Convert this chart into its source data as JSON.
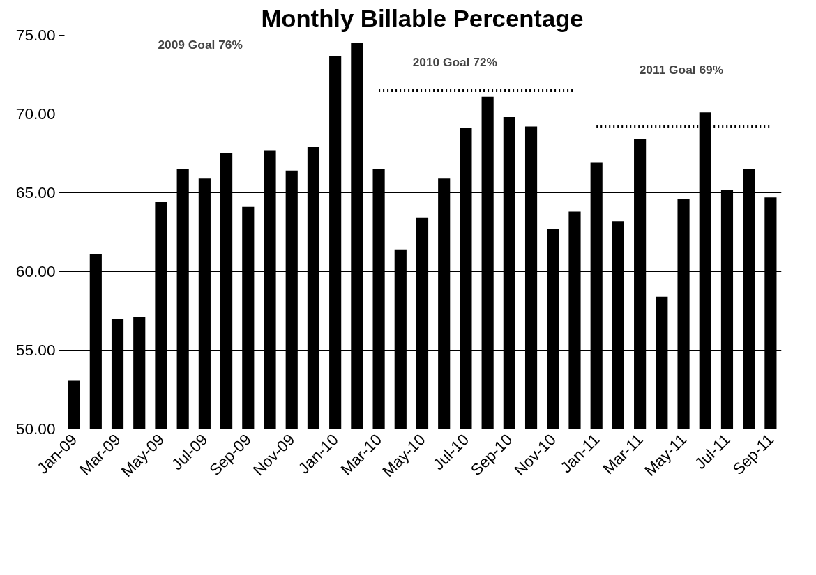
{
  "chart_data": {
    "type": "bar",
    "title": "Monthly Billable Percentage",
    "categories": [
      "Jan-09",
      null,
      "Mar-09",
      null,
      "May-09",
      null,
      "Jul-09",
      null,
      "Sep-09",
      null,
      "Nov-09",
      null,
      "Jan-10",
      null,
      "Mar-10",
      null,
      "May-10",
      null,
      "Jul-10",
      null,
      "Sep-10",
      null,
      "Nov-10",
      null,
      "Jan-11",
      null,
      "Mar-11",
      null,
      "May-11",
      null,
      "Jul-11",
      null,
      "Sep-11"
    ],
    "series": [
      {
        "color": "#000000",
        "values": [
          53.1,
          61.1,
          57.0,
          57.1,
          64.4,
          66.5,
          65.9,
          67.5,
          64.1,
          67.7,
          66.4,
          67.9,
          73.7,
          74.5,
          66.5,
          61.4,
          63.4,
          65.9,
          69.1,
          71.1,
          69.8,
          69.2,
          62.7,
          63.8,
          66.9,
          63.2,
          68.4,
          58.4,
          64.6,
          70.1,
          65.2,
          66.5,
          64.7
        ]
      },
      {
        "type": "line",
        "color": "#000000",
        "line_style": "dotted",
        "values": [
          null,
          null,
          null,
          null,
          null,
          null,
          null,
          null,
          null,
          null,
          null,
          null,
          null,
          null,
          71.5,
          71.5,
          71.5,
          71.5,
          71.5,
          71.5,
          71.5,
          71.5,
          71.5,
          71.5,
          null,
          null,
          null,
          null,
          null,
          null,
          null,
          null,
          null
        ]
      },
      {
        "type": "line",
        "color": "#000000",
        "line_style": "dotted",
        "values": [
          null,
          null,
          null,
          null,
          null,
          null,
          null,
          null,
          null,
          null,
          null,
          null,
          null,
          null,
          null,
          null,
          null,
          null,
          null,
          null,
          null,
          null,
          null,
          null,
          69.2,
          69.2,
          69.2,
          69.2,
          69.2,
          69.2,
          69.2,
          69.2,
          69.2
        ]
      }
    ],
    "ylim": [
      50,
      75
    ],
    "yticks": [
      {
        "value": 50,
        "label": "50.00"
      },
      {
        "value": 55,
        "label": "55.00"
      },
      {
        "value": 60,
        "label": "60.00"
      },
      {
        "value": 65,
        "label": "65.00"
      },
      {
        "value": 70,
        "label": "70.00"
      },
      {
        "value": 75,
        "label": "75.00"
      }
    ],
    "grid": "y",
    "annotations": [
      "2009 Goal 76%",
      "2010 Goal 72%",
      "2011 Goal 69%"
    ]
  }
}
